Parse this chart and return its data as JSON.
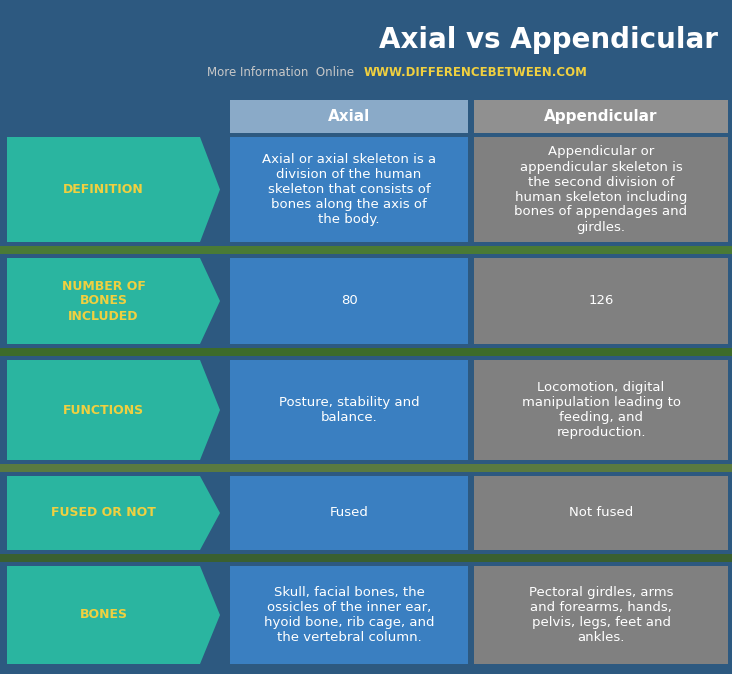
{
  "title": "Axial vs Appendicular",
  "subtitle_plain": "More Information  Online  ",
  "subtitle_url": "WWW.DIFFERENCEBETWEEN.COM",
  "col_headers": [
    "Axial",
    "Appendicular"
  ],
  "row_labels": [
    "DEFINITION",
    "NUMBER OF\nBONES\nINCLUDED",
    "FUNCTIONS",
    "FUSED OR NOT",
    "BONES"
  ],
  "axial_data": [
    "Axial or axial skeleton is a\ndivision of the human\nskeleton that consists of\nbones along the axis of\nthe body.",
    "80",
    "Posture, stability and\nbalance.",
    "Fused",
    "Skull, facial bones, the\nossicles of the inner ear,\nhyoid bone, rib cage, and\nthe vertebral column."
  ],
  "appendicular_data": [
    "Appendicular or\nappendicular skeleton is\nthe second division of\nhuman skeleton including\nbones of appendages and\ngirdles.",
    "126",
    "Locomotion, digital\nmanipulation leading to\nfeeding, and\nreproduction.",
    "Not fused",
    "Pectoral girdles, arms\nand forearms, hands,\npelvis, legs, feet and\nankles."
  ],
  "bg_top_color": "#2d5f8a",
  "bg_bottom_color": "#1a3a55",
  "label_bg_color": "#2ab5a0",
  "axial_col_color": "#3a7fc1",
  "appendicular_col_color": "#808080",
  "header_axial_color": "#8aaac8",
  "header_appendicular_color": "#909090",
  "label_text_color": "#f0d040",
  "data_text_color": "#ffffff",
  "header_text_color": "#ffffff",
  "title_color": "#ffffff",
  "subtitle_plain_color": "#c8c8c8",
  "subtitle_url_color": "#f0d040",
  "gap_color_top": "#4a7a3a",
  "gap_color_mid": "#5a8a4a",
  "gap_color_bottom": "#3a6a5a"
}
